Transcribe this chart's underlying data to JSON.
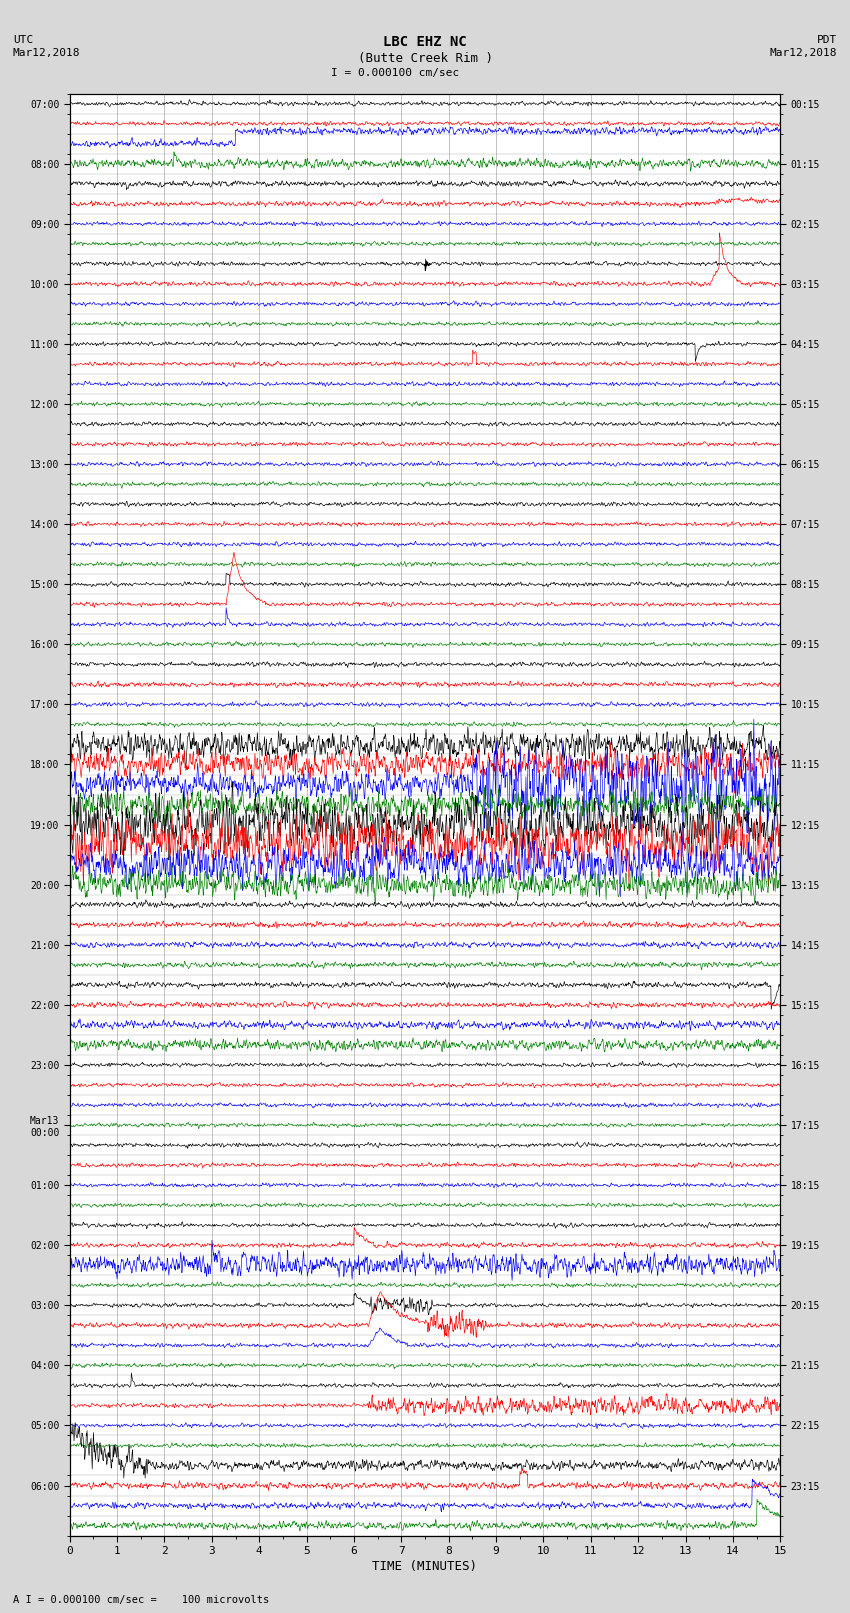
{
  "title_line1": "LBC EHZ NC",
  "title_line2": "(Butte Creek Rim )",
  "scale_text": "I = 0.000100 cm/sec",
  "footer_label": "A I = 0.000100 cm/sec =    100 microvolts",
  "utc_label": "UTC\nMar12,2018",
  "pdt_label": "PDT\nMar12,2018",
  "xlabel": "TIME (MINUTES)",
  "left_times": [
    "07:00",
    "",
    "",
    "08:00",
    "",
    "",
    "09:00",
    "",
    "",
    "10:00",
    "",
    "",
    "11:00",
    "",
    "",
    "12:00",
    "",
    "",
    "13:00",
    "",
    "",
    "14:00",
    "",
    "",
    "15:00",
    "",
    "",
    "16:00",
    "",
    "",
    "17:00",
    "",
    "",
    "18:00",
    "",
    "",
    "19:00",
    "",
    "",
    "20:00",
    "",
    "",
    "21:00",
    "",
    "",
    "22:00",
    "",
    "",
    "23:00",
    "",
    "",
    "Mar13\n00:00",
    "",
    "",
    "01:00",
    "",
    "",
    "02:00",
    "",
    "",
    "03:00",
    "",
    "",
    "04:00",
    "",
    "",
    "05:00",
    "",
    "",
    "06:00",
    "",
    ""
  ],
  "right_times": [
    "00:15",
    "",
    "",
    "01:15",
    "",
    "",
    "02:15",
    "",
    "",
    "03:15",
    "",
    "",
    "04:15",
    "",
    "",
    "05:15",
    "",
    "",
    "06:15",
    "",
    "",
    "07:15",
    "",
    "",
    "08:15",
    "",
    "",
    "09:15",
    "",
    "",
    "10:15",
    "",
    "",
    "11:15",
    "",
    "",
    "12:15",
    "",
    "",
    "13:15",
    "",
    "",
    "14:15",
    "",
    "",
    "15:15",
    "",
    "",
    "16:15",
    "",
    "",
    "17:15",
    "",
    "",
    "18:15",
    "",
    "",
    "19:15",
    "",
    "",
    "20:15",
    "",
    "",
    "21:15",
    "",
    "",
    "22:15",
    "",
    "",
    "23:15",
    "",
    ""
  ],
  "colors": [
    "black",
    "red",
    "blue",
    "green"
  ],
  "bg_color": "#d8d8d8",
  "plot_bg": "#ffffff",
  "n_rows": 72,
  "minutes": 15,
  "seed": 12345
}
